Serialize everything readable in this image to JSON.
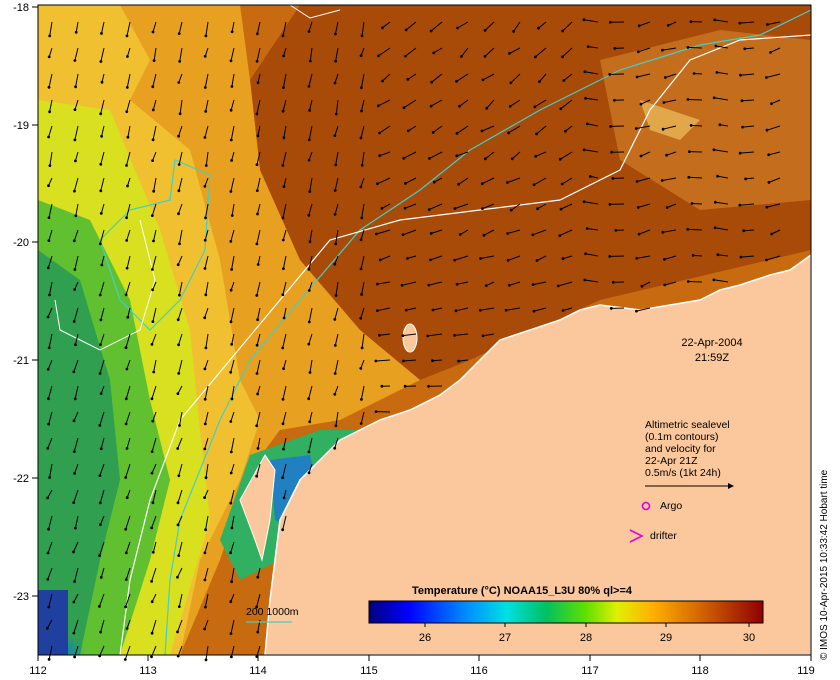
{
  "map": {
    "x_ticks": [
      "112",
      "113",
      "114",
      "115",
      "116",
      "117",
      "118",
      "119"
    ],
    "y_ticks": [
      "-18",
      "-19",
      "-20",
      "-21",
      "-22",
      "-23"
    ],
    "date": "22-Apr-2004",
    "time": "21:59Z",
    "legend_lines": [
      "Altimetric sealevel",
      "(0.1m contours)",
      "and velocity for",
      "22-Apr 21Z",
      "0.5m/s (1kt 24h)"
    ],
    "argo_label": "Argo",
    "drifter_label": "drifter",
    "isobath_label": "200  1000m",
    "colorbar_title": "Temperature (°C) NOAA15_L3U 80% ql>=4",
    "colorbar_ticks": [
      "26",
      "27",
      "28",
      "29",
      "30"
    ],
    "credit": "© IMOS 10-Apr-2015 10:33:42 Hobart time",
    "colors": {
      "land": "#fbc79c",
      "warm": "#b8560a",
      "isobath_200": "#40d0c8",
      "isobath_1000": "#ffffff",
      "argo": "#e000e0"
    },
    "colorbar_stops": [
      "#00007f",
      "#0000ff",
      "#0080ff",
      "#00ffff",
      "#00c800",
      "#80ff00",
      "#ffff00",
      "#ff8000",
      "#c04000",
      "#800000"
    ]
  }
}
